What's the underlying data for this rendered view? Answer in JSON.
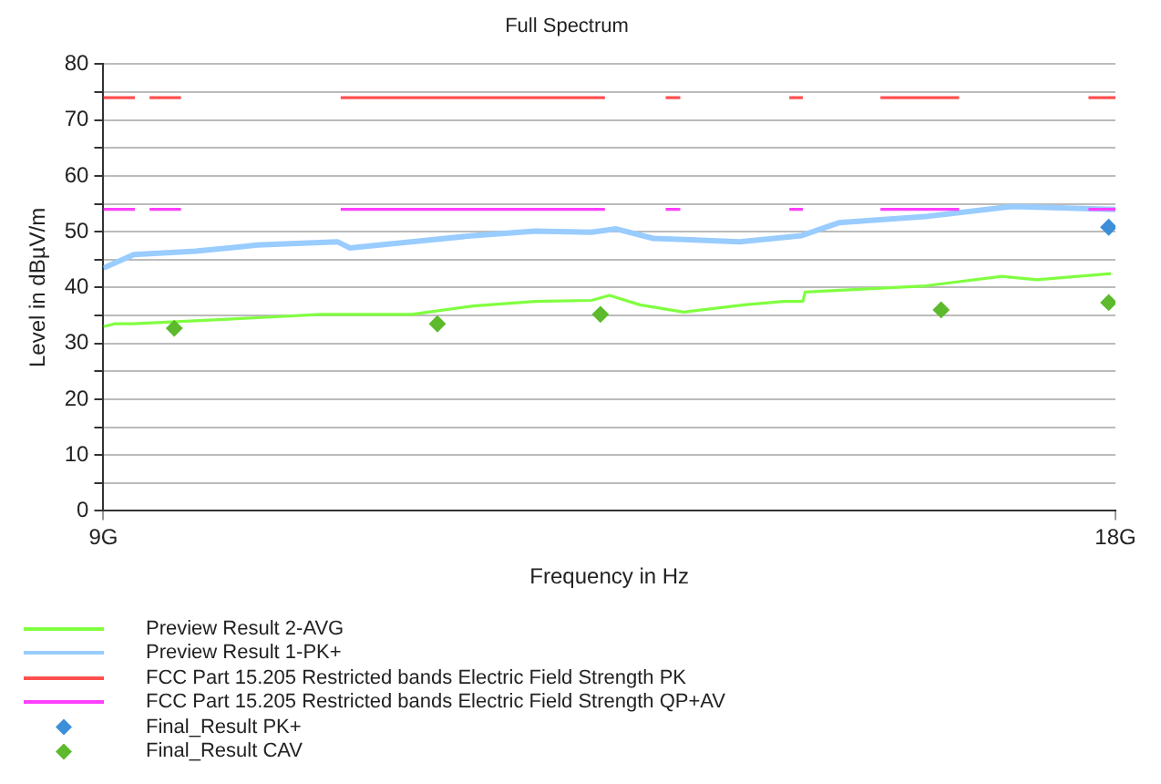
{
  "chart_data": {
    "type": "line",
    "title": "Full Spectrum",
    "xlabel": "Frequency in Hz",
    "ylabel": "Level in dBµV/m",
    "xlim": [
      9,
      18
    ],
    "xticks": [
      {
        "value": 9,
        "label": "9G"
      },
      {
        "value": 18,
        "label": "18G"
      }
    ],
    "ylim": [
      0,
      80
    ],
    "yticks": [
      0,
      {
        "value": 5,
        "label": null
      },
      10,
      {
        "value": 15,
        "label": null
      },
      20,
      {
        "value": 25,
        "label": null
      },
      30,
      {
        "value": 35,
        "label": null
      },
      40,
      {
        "value": 45,
        "label": null
      },
      50,
      {
        "value": 55,
        "label": null
      },
      60,
      {
        "value": 65,
        "label": null
      },
      70,
      {
        "value": 75,
        "label": null
      },
      80
    ],
    "grid": "y",
    "legend": "bottom",
    "marker": "none",
    "line_style": "solid",
    "series": [
      {
        "name": "Preview Result 2-AVG",
        "color": "#80ff40",
        "x": [
          9.0,
          9.1,
          9.27,
          10.37,
          10.93,
          11.19,
          11.74,
          12.29,
          12.84,
          13.34,
          13.5,
          13.77,
          14.16,
          14.7,
          15.05,
          15.22,
          15.24,
          16.31,
          16.99,
          17.3,
          17.96
        ],
        "values": [
          33,
          33.5,
          33.5,
          34.6,
          35.2,
          35.2,
          35.2,
          36.7,
          37.5,
          37.7,
          38.6,
          36.9,
          35.6,
          36.9,
          37.5,
          37.5,
          39.2,
          40.3,
          42,
          41.4,
          42.5
        ]
      },
      {
        "name": "Preview Result 1-PK+",
        "color": "#99ccff",
        "x": [
          9.0,
          9.27,
          9.82,
          10.37,
          11.08,
          11.19,
          11.74,
          12.29,
          12.84,
          13.34,
          13.56,
          13.89,
          14.66,
          15.21,
          15.54,
          16.31,
          17.08,
          18.0
        ],
        "values": [
          43.5,
          45.9,
          46.5,
          47.6,
          48.2,
          47.1,
          48.2,
          49.3,
          50.1,
          49.9,
          50.5,
          48.8,
          48.2,
          49.3,
          51.6,
          52.7,
          54.5,
          54
        ]
      },
      {
        "name": "FCC Part 15.205 Restricted bands Electric Field Strength PK",
        "color": "#ff5050",
        "x": [
          9.0,
          9.28,
          9.35,
          9.41,
          9.69,
          10.4,
          11.11,
          13.46,
          13.7,
          14.0,
          14.13,
          14.6,
          15.1,
          15.22,
          15.5,
          15.91,
          16.61,
          17.2,
          17.76,
          18.0
        ],
        "values": [
          74,
          74,
          null,
          74,
          74,
          null,
          74,
          74,
          null,
          74,
          74,
          null,
          74,
          74,
          null,
          74,
          74,
          null,
          74,
          74
        ]
      },
      {
        "name": "FCC Part 15.205 Restricted bands Electric Field Strength QP+AV",
        "color": "#ff40ff",
        "x": [
          9.0,
          9.28,
          9.35,
          9.41,
          9.69,
          10.4,
          11.11,
          13.46,
          13.7,
          14.0,
          14.13,
          14.6,
          15.1,
          15.22,
          15.5,
          15.91,
          16.61,
          17.2,
          17.76,
          18.0
        ],
        "values": [
          54,
          54,
          null,
          54,
          54,
          null,
          54,
          54,
          null,
          54,
          54,
          null,
          54,
          54,
          null,
          54,
          54,
          null,
          54,
          54
        ]
      },
      {
        "name": "Final_Result PK+",
        "type": "scatter",
        "marker": "diamond",
        "color": "#3c8fd8",
        "x": [
          17.94
        ],
        "values": [
          50.8
        ]
      },
      {
        "name": "Final_Result CAV",
        "type": "scatter",
        "marker": "diamond",
        "color": "#5cba2c",
        "x": [
          9.63,
          11.97,
          13.42,
          16.45,
          17.94
        ],
        "values": [
          32.7,
          33.5,
          35.2,
          36.0,
          37.3
        ]
      }
    ]
  }
}
